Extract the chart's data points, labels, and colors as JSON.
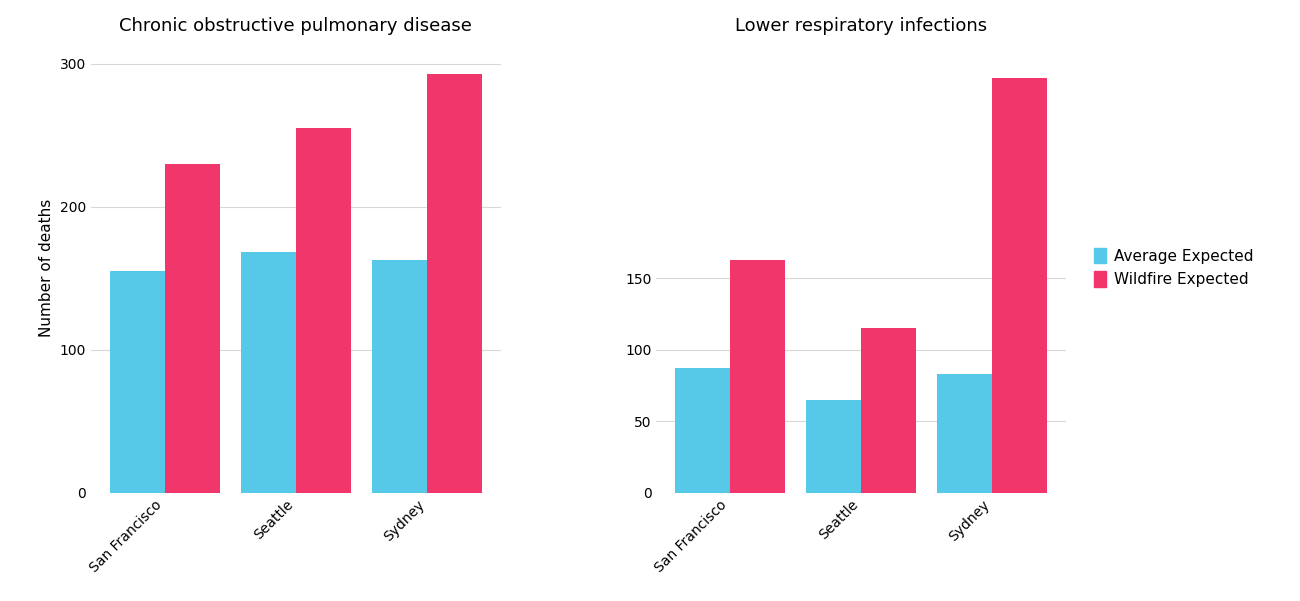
{
  "copd": {
    "title": "Chronic obstructive pulmonary disease",
    "categories": [
      "San Francisco",
      "Seattle",
      "Sydney"
    ],
    "average_expected": [
      155,
      168,
      163
    ],
    "wildfire_expected": [
      230,
      255,
      293
    ],
    "ylim": [
      0,
      315
    ],
    "yticks": [
      0,
      100,
      200,
      300
    ]
  },
  "lri": {
    "title": "Lower respiratory infections",
    "categories": [
      "San Francisco",
      "Seattle",
      "Sydney"
    ],
    "average_expected": [
      87,
      65,
      83
    ],
    "wildfire_expected": [
      163,
      115,
      290
    ],
    "ylim": [
      0,
      315
    ],
    "yticks": [
      0,
      50,
      100,
      150
    ]
  },
  "colors": {
    "average": "#56C8E8",
    "wildfire": "#F0366A"
  },
  "legend": {
    "average_label": "Average Expected",
    "wildfire_label": "Wildfire Expected"
  },
  "ylabel": "Number of deaths",
  "background_color": "#FFFFFF",
  "grid_color": "#D8D8D8",
  "bar_width": 0.42,
  "title_fontsize": 13,
  "tick_fontsize": 10,
  "label_fontsize": 11
}
